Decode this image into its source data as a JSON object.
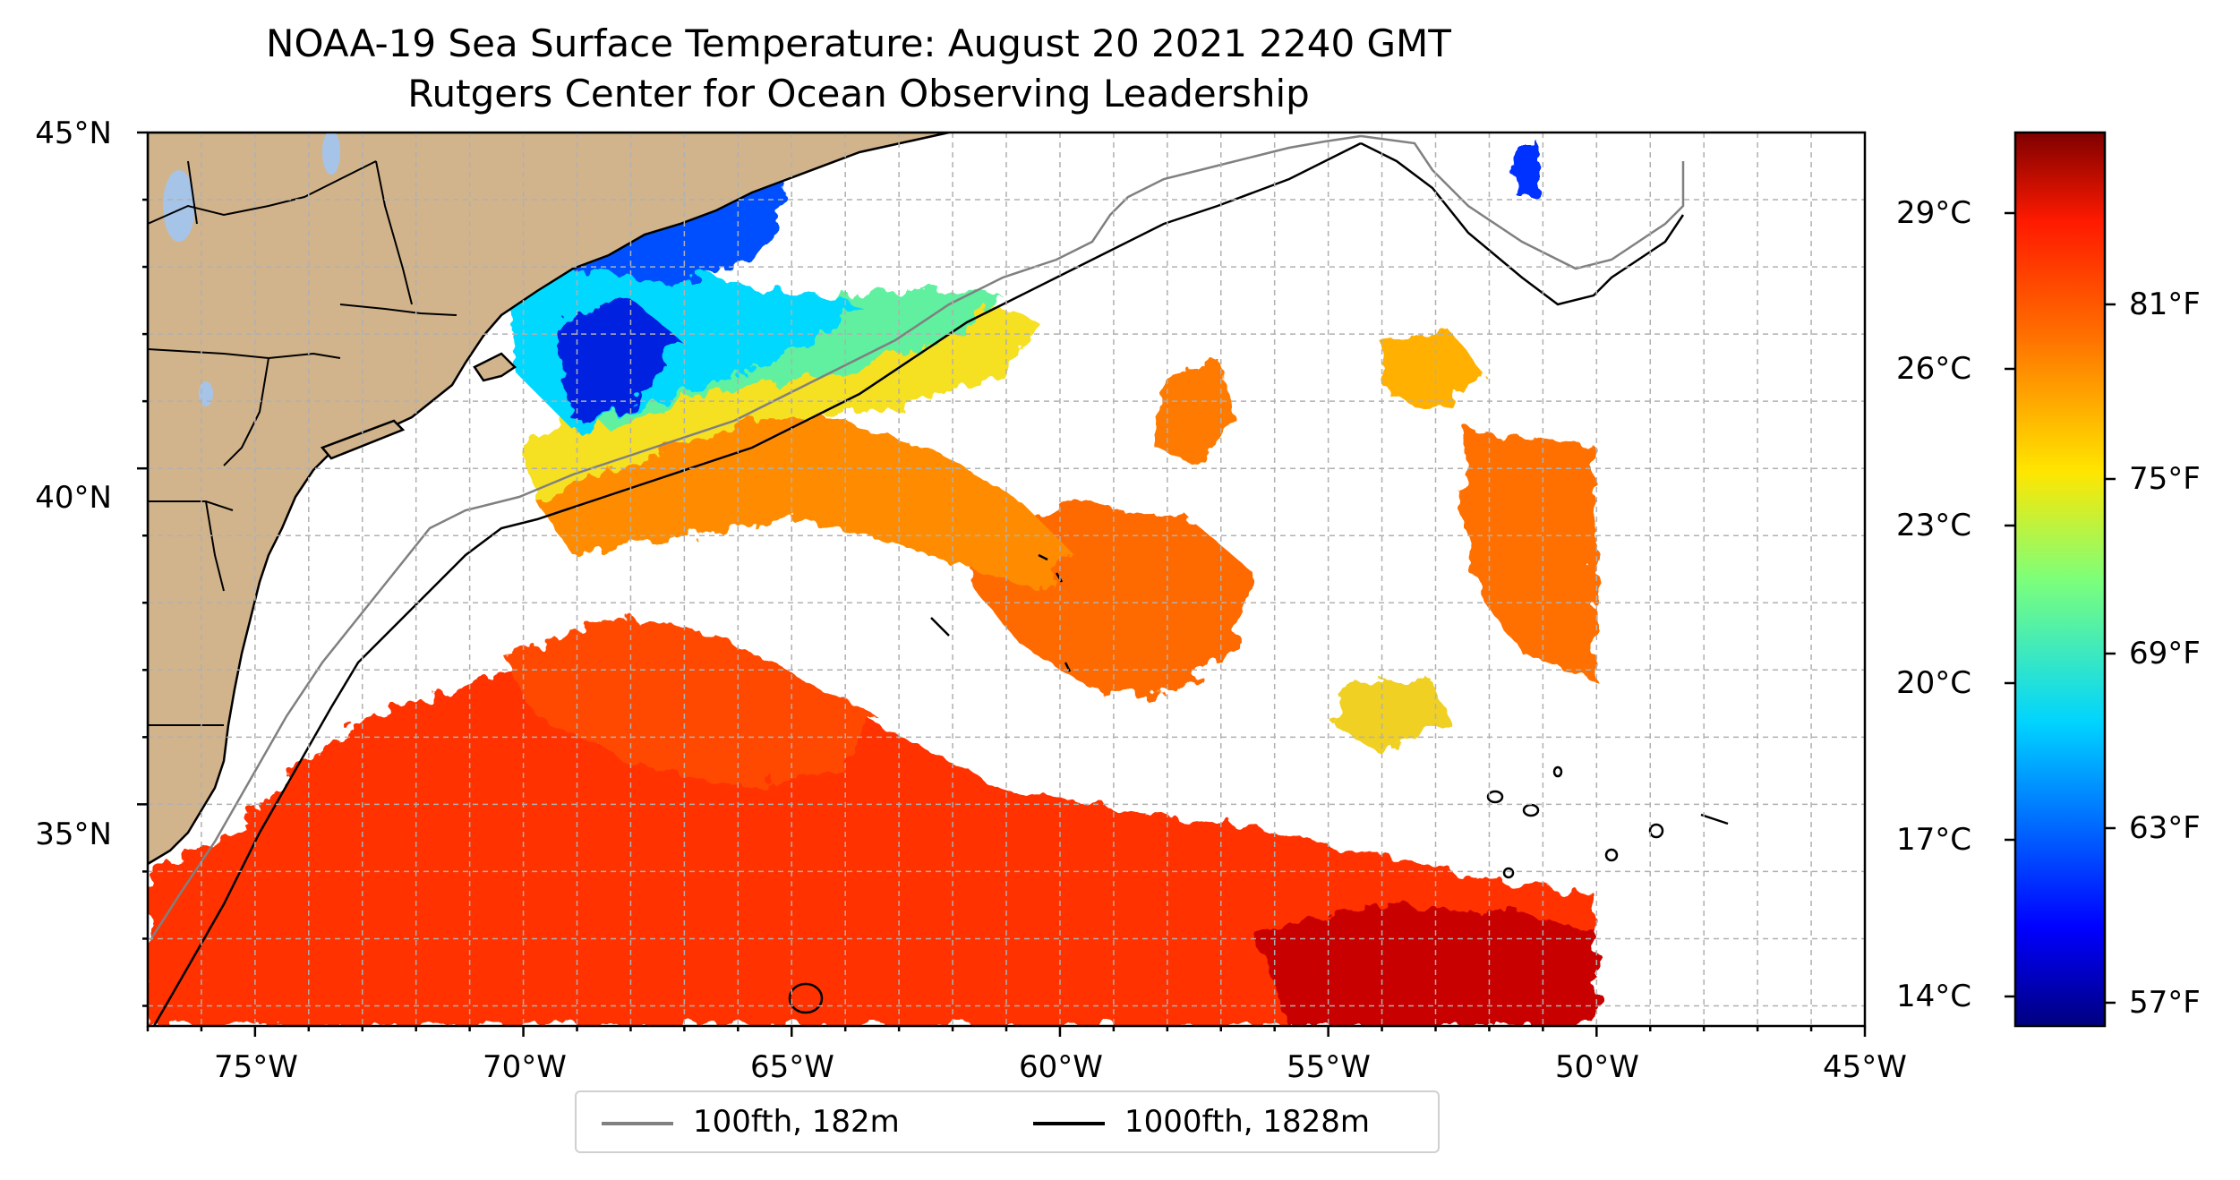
{
  "title": {
    "line1": "NOAA-19 Sea Surface Temperature: August 20 2021 2240 GMT",
    "line2": "Rutgers Center for Ocean Observing Leadership"
  },
  "map": {
    "lat_labels": [
      {
        "value": 45,
        "label": "45°N"
      },
      {
        "value": 40,
        "label": "40°N"
      },
      {
        "value": 35,
        "label": "35°N"
      }
    ],
    "lon_labels": [
      {
        "value": -75,
        "label": "75°W"
      },
      {
        "value": -70,
        "label": "70°W"
      },
      {
        "value": -65,
        "label": "65°W"
      },
      {
        "value": -60,
        "label": "60°W"
      },
      {
        "value": -55,
        "label": "55°W"
      },
      {
        "value": -50,
        "label": "50°W"
      },
      {
        "value": -45,
        "label": "45°W"
      }
    ],
    "lon_range": [
      -77,
      -45
    ],
    "lat_range": [
      31.7,
      45
    ],
    "gridlines": true,
    "colors": {
      "land": "#d2b48c",
      "lakes": "#a6c4e8",
      "isobath_100fth": "#808080",
      "isobath_1000fth": "#000000",
      "grid": "#b0b0b0"
    }
  },
  "colorbar": {
    "colormap": "jet",
    "celsius_labels": [
      "29°C",
      "26°C",
      "23°C",
      "20°C",
      "17°C",
      "14°C"
    ],
    "fahrenheit_labels": [
      "81°F",
      "75°F",
      "69°F",
      "63°F",
      "57°F"
    ]
  },
  "legend": {
    "items": [
      {
        "label": "100fth, 182m",
        "color": "#808080"
      },
      {
        "label": "1000fth, 1828m",
        "color": "#000000"
      }
    ]
  }
}
